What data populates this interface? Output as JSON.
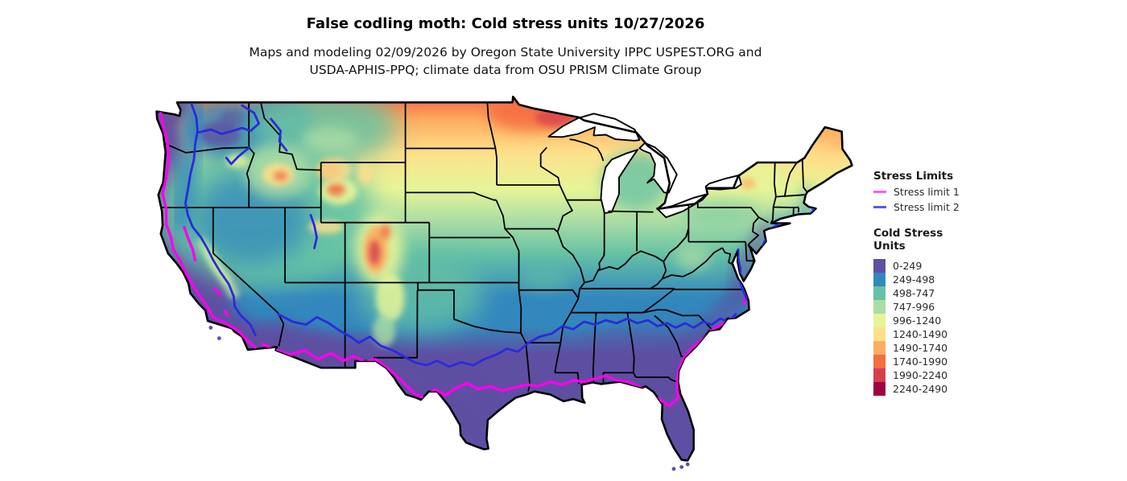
{
  "header": {
    "title": "False codling moth: Cold stress units 10/27/2026",
    "subtitle_line1": "Maps and modeling 02/09/2026 by Oregon State University IPPC USPEST.ORG and",
    "subtitle_line2": "USDA-APHIS-PPQ; climate data from OSU PRISM Climate Group"
  },
  "legend": {
    "stress_limits_title": "Stress Limits",
    "stress_limits": [
      {
        "label": "Stress limit 1",
        "color": "#ee62e4"
      },
      {
        "label": "Stress limit 2",
        "color": "#5b5bd8"
      }
    ],
    "units_title_line1": "Cold Stress",
    "units_title_line2": "Units",
    "bins": [
      {
        "label": "0-249",
        "color": "#5e4fa2"
      },
      {
        "label": "249-498",
        "color": "#3288bd"
      },
      {
        "label": "498-747",
        "color": "#66c2a5"
      },
      {
        "label": "747-996",
        "color": "#abdda4"
      },
      {
        "label": "996-1240",
        "color": "#e6f598"
      },
      {
        "label": "1240-1490",
        "color": "#fee08b"
      },
      {
        "label": "1490-1740",
        "color": "#fdae61"
      },
      {
        "label": "1740-1990",
        "color": "#f46d43"
      },
      {
        "label": "1990-2240",
        "color": "#d53e4f"
      },
      {
        "label": "2240-2490",
        "color": "#9e0142"
      }
    ]
  },
  "map": {
    "region": "Continental United States",
    "stress_limit1_line_color": "#ff00ec",
    "stress_limit2_line_color": "#2b2bd9",
    "border_color": "#000000",
    "water_color": "#ffffff"
  }
}
